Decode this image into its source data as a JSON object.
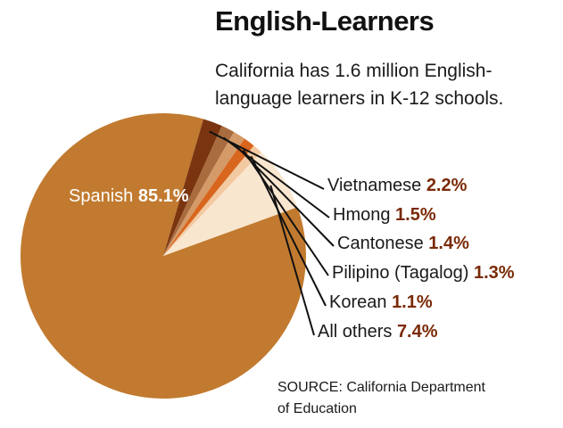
{
  "header": {
    "title": "English-Learners",
    "subtitle_lines": [
      "California has 1.6 million English-",
      "language learners in K-12 schools."
    ]
  },
  "source": {
    "lines": [
      "SOURCE: California Department",
      "of Education"
    ]
  },
  "chart_data": {
    "type": "pie",
    "categories": [
      "Spanish",
      "Vietnamese",
      "Hmong",
      "Cantonese",
      "Pilipino (Tagalog)",
      "Korean",
      "All others"
    ],
    "values": [
      85.1,
      2.2,
      1.5,
      1.4,
      1.3,
      1.1,
      7.4
    ],
    "value_labels": [
      "85.1%",
      "2.2%",
      "1.5%",
      "1.4%",
      "1.3%",
      "1.1%",
      "7.4%"
    ],
    "colors": [
      "#c17a2f",
      "#7a3510",
      "#a86c3e",
      "#d49a68",
      "#d9661e",
      "#f2c9a0",
      "#f9e6cf"
    ],
    "label_color": "#7a2a06",
    "legend": "callouts-right"
  }
}
